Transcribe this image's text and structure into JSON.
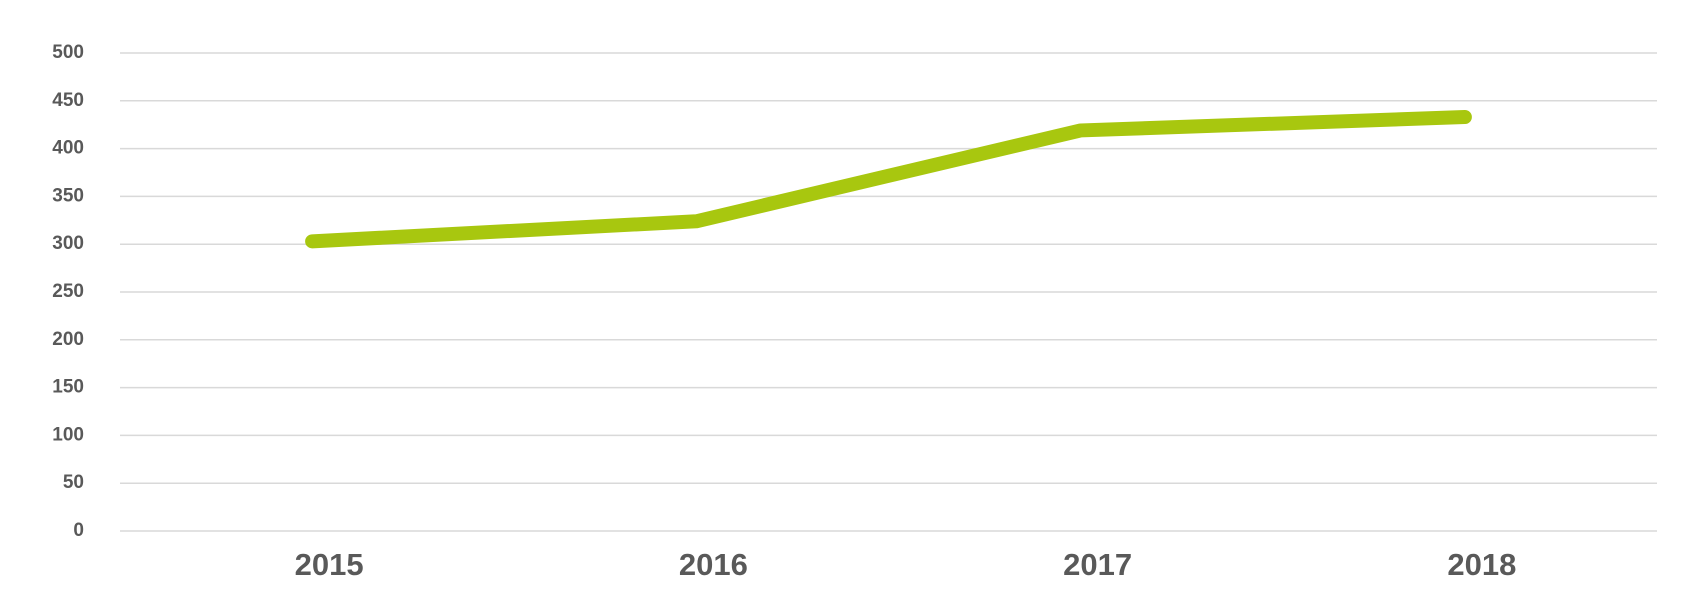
{
  "chart_data": {
    "type": "line",
    "categories": [
      "2015",
      "2016",
      "2017",
      "2018"
    ],
    "series": [
      {
        "name": null,
        "color": "#a8c70f",
        "values": [
          303,
          324,
          419,
          433
        ]
      }
    ],
    "ylim": [
      0,
      500
    ],
    "yticks": [
      0,
      50,
      100,
      150,
      200,
      250,
      300,
      350,
      400,
      450,
      500
    ],
    "grid": true
  }
}
